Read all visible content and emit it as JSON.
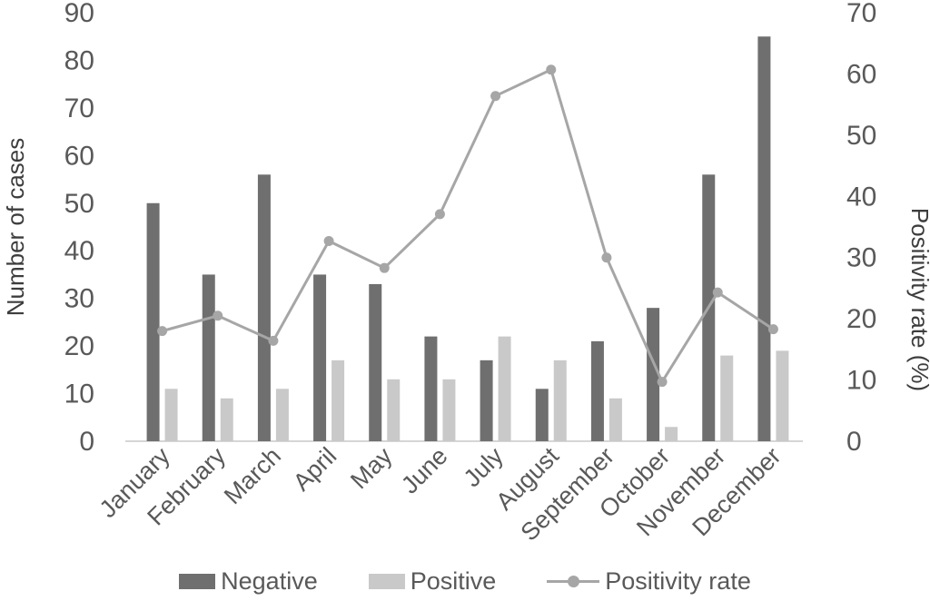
{
  "chart_data": {
    "type": "bar-line-combo",
    "categories": [
      "January",
      "February",
      "March",
      "April",
      "May",
      "June",
      "July",
      "August",
      "September",
      "October",
      "November",
      "December"
    ],
    "series": [
      {
        "name": "Negative",
        "type": "bar",
        "axis": "left",
        "color": "#6f6f6f",
        "values": [
          50,
          35,
          56,
          35,
          33,
          22,
          17,
          11,
          21,
          28,
          56,
          85
        ]
      },
      {
        "name": "Positive",
        "type": "bar",
        "axis": "left",
        "color": "#c9c9c9",
        "values": [
          11,
          9,
          11,
          17,
          13,
          13,
          22,
          17,
          9,
          3,
          18,
          19
        ]
      },
      {
        "name": "Positivity rate",
        "type": "line",
        "axis": "right",
        "color": "#a6a6a6",
        "values": [
          18.0,
          20.5,
          16.4,
          32.7,
          28.3,
          37.1,
          56.4,
          60.7,
          30.0,
          9.7,
          24.3,
          18.3
        ]
      }
    ],
    "left_axis": {
      "label": "Number of cases",
      "min": 0,
      "max": 90,
      "step": 10,
      "ticks": [
        "0",
        "10",
        "20",
        "30",
        "40",
        "50",
        "60",
        "70",
        "80",
        "90"
      ]
    },
    "right_axis": {
      "label": "Positivity rate (%)",
      "min": 0,
      "max": 70,
      "step": 10,
      "ticks": [
        "0",
        "10",
        "20",
        "30",
        "40",
        "50",
        "60",
        "70"
      ]
    },
    "legend": [
      "Negative",
      "Positive",
      "Positivity rate"
    ],
    "grid": false,
    "legend_position": "bottom"
  },
  "colors": {
    "tick_text": "#595959",
    "axis_title_text": "#3d3d3d",
    "axis_line": "#d6d6d6",
    "background": "#ffffff"
  }
}
